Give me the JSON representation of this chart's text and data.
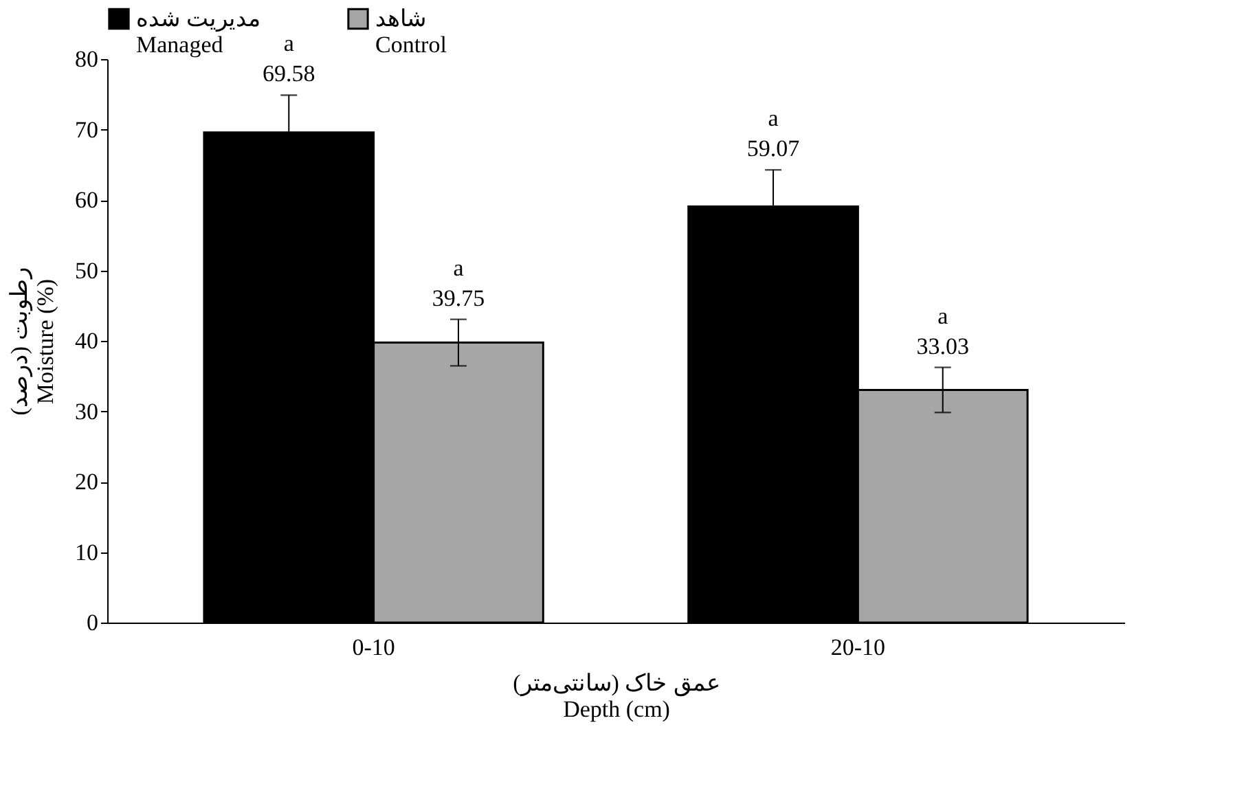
{
  "chart_data": {
    "type": "bar",
    "categories": [
      "0-10",
      "20-10"
    ],
    "series": [
      {
        "name": "مدیریت شده\nManaged",
        "color": "#000000",
        "values": [
          69.58,
          59.07
        ],
        "errors": [
          5.3,
          5.2
        ],
        "value_labels": [
          "a\n69.58",
          "a\n59.07"
        ]
      },
      {
        "name": "شاهد\nControl",
        "color": "#a6a6a6",
        "values": [
          39.75,
          33.03
        ],
        "errors": [
          3.3,
          3.2
        ],
        "value_labels": [
          "a\n39.75",
          "a\n33.03"
        ]
      }
    ],
    "xlabel": "عمق خاک (سانتی‌متر)\nDepth (cm)",
    "ylabel": "رطوبت (درصد)\nMoisture (%)",
    "ylim": [
      0,
      80
    ],
    "yticks": [
      0,
      10,
      20,
      30,
      40,
      50,
      60,
      70,
      80
    ],
    "grid": false,
    "legend": "top"
  }
}
